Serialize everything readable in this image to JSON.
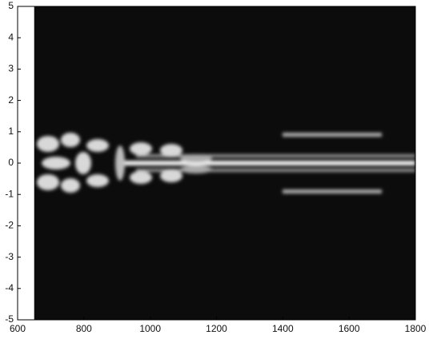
{
  "chart_data": {
    "type": "image",
    "xlim": [
      600,
      1800
    ],
    "ylim": [
      -5,
      5
    ],
    "xticks": [
      600,
      800,
      1000,
      1200,
      1400,
      1600,
      1800
    ],
    "yticks": [
      5,
      4,
      3,
      2,
      1,
      0,
      -1,
      -2,
      -3,
      -4,
      -5
    ],
    "image_extent": [
      650,
      1800,
      -5,
      5
    ]
  }
}
